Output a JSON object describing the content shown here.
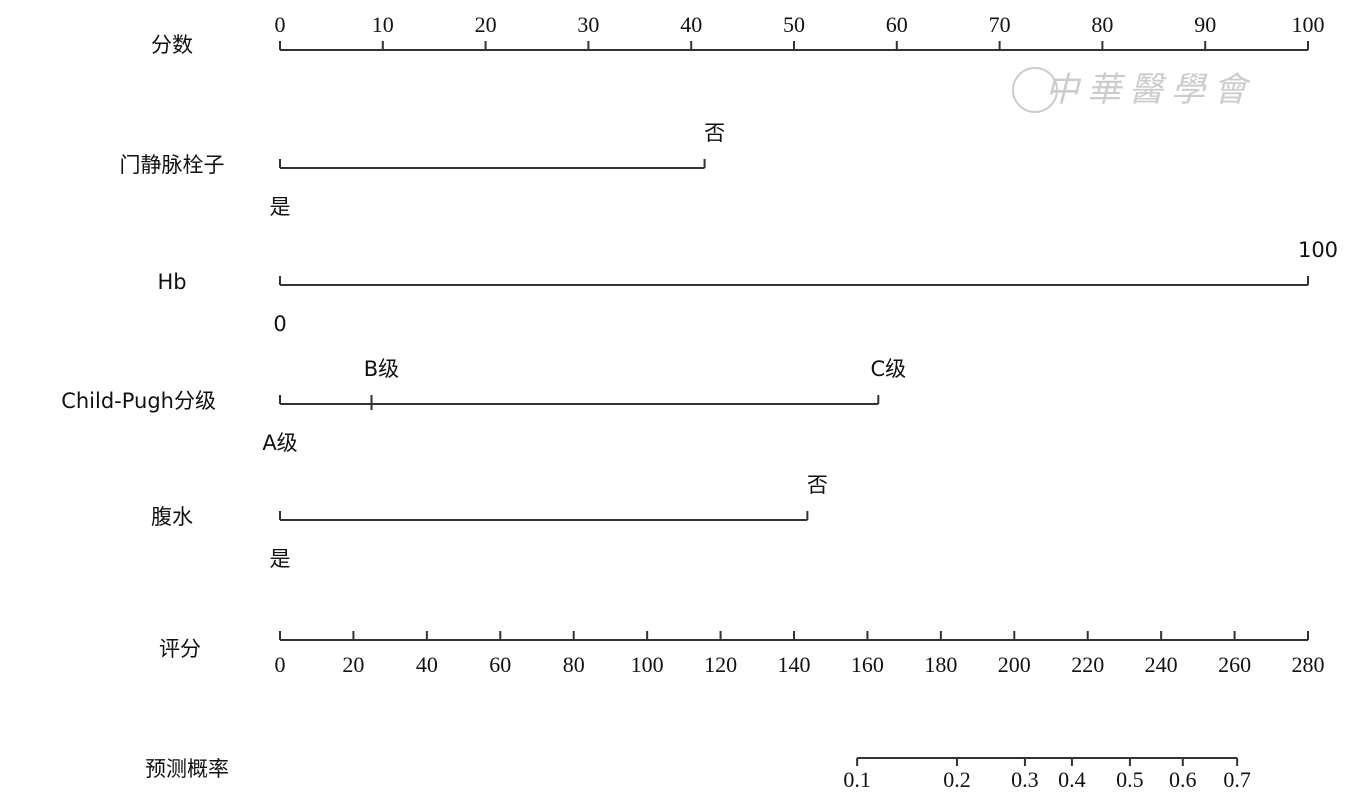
{
  "chart_data": {
    "type": "nomogram",
    "watermark": "中華醫學會",
    "points_axis": {
      "label": "分数",
      "xlim": [
        0,
        100
      ],
      "xticks": [
        0,
        10,
        20,
        30,
        40,
        50,
        60,
        70,
        80,
        90,
        100
      ]
    },
    "variables": [
      {
        "label": "门静脉栓子",
        "levels": [
          "是",
          "否"
        ],
        "points": [
          0,
          41.3
        ]
      },
      {
        "label": "Hb",
        "levels": [
          "0",
          "100"
        ],
        "points": [
          0,
          100
        ]
      },
      {
        "label": "Child-Pugh分级",
        "levels": [
          "A级",
          "B级",
          "C级"
        ],
        "points": [
          0,
          8.9,
          58.2
        ]
      },
      {
        "label": "腹水",
        "levels": [
          "是",
          "否"
        ],
        "points": [
          0,
          51.3
        ]
      }
    ],
    "total_axis": {
      "label": "评分",
      "xlim": [
        0,
        280
      ],
      "xticks": [
        0,
        20,
        40,
        60,
        80,
        100,
        120,
        140,
        160,
        180,
        200,
        220,
        240,
        260,
        280
      ]
    },
    "probability_axis": {
      "label": "预测概率",
      "values": [
        0.1,
        0.2,
        0.3,
        0.4,
        0.5,
        0.6,
        0.7
      ],
      "total_points": [
        157.2,
        184.4,
        202.9,
        215.7,
        231.5,
        245.9,
        260.7
      ]
    }
  }
}
